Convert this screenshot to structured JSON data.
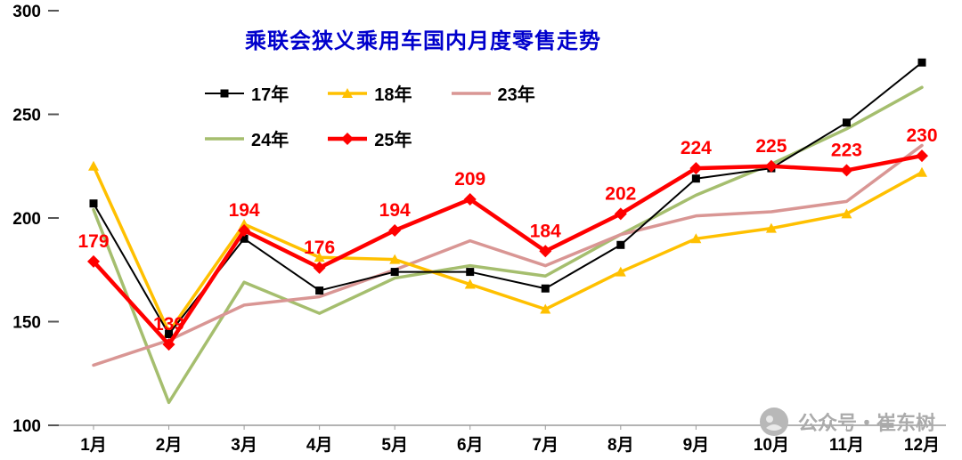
{
  "chart_data": {
    "type": "line",
    "title": "乘联会狭义乘用车国内月度零售走势",
    "title_color": "#0000CC",
    "categories": [
      "1月",
      "2月",
      "3月",
      "4月",
      "5月",
      "6月",
      "7月",
      "8月",
      "9月",
      "10月",
      "11月",
      "12月"
    ],
    "ylim": [
      100,
      300
    ],
    "yticks": [
      300,
      250,
      200,
      150,
      100
    ],
    "grid": false,
    "legend_position": "top-left",
    "legend_rows": [
      [
        "17年",
        "18年",
        "23年"
      ],
      [
        "24年",
        "25年"
      ]
    ],
    "series": [
      {
        "name": "24年",
        "color": "#A5BE6E",
        "marker": "none",
        "width": 3.5,
        "values": [
          204,
          111,
          169,
          154,
          171,
          177,
          172,
          192,
          211,
          226,
          243,
          263
        ]
      },
      {
        "name": "23年",
        "color": "#D99694",
        "marker": "none",
        "width": 3.5,
        "values": [
          129,
          141,
          158,
          162,
          175,
          189,
          177,
          192,
          201,
          203,
          208,
          235
        ]
      },
      {
        "name": "18年",
        "color": "#FFC000",
        "marker": "triangle",
        "width": 3.5,
        "values": [
          225,
          145,
          197,
          181,
          180,
          168,
          156,
          174,
          190,
          195,
          202,
          222
        ]
      },
      {
        "name": "17年",
        "color": "#000000",
        "marker": "square",
        "width": 2,
        "values": [
          207,
          144,
          190,
          165,
          174,
          174,
          166,
          187,
          219,
          224,
          246,
          275
        ]
      },
      {
        "name": "25年",
        "color": "#FF0000",
        "marker": "diamond",
        "width": 4.5,
        "show_labels": true,
        "values": [
          179,
          139,
          194,
          176,
          194,
          209,
          184,
          202,
          224,
          225,
          223,
          230
        ]
      }
    ]
  },
  "watermark": {
    "text": "公众号・崔东树"
  }
}
